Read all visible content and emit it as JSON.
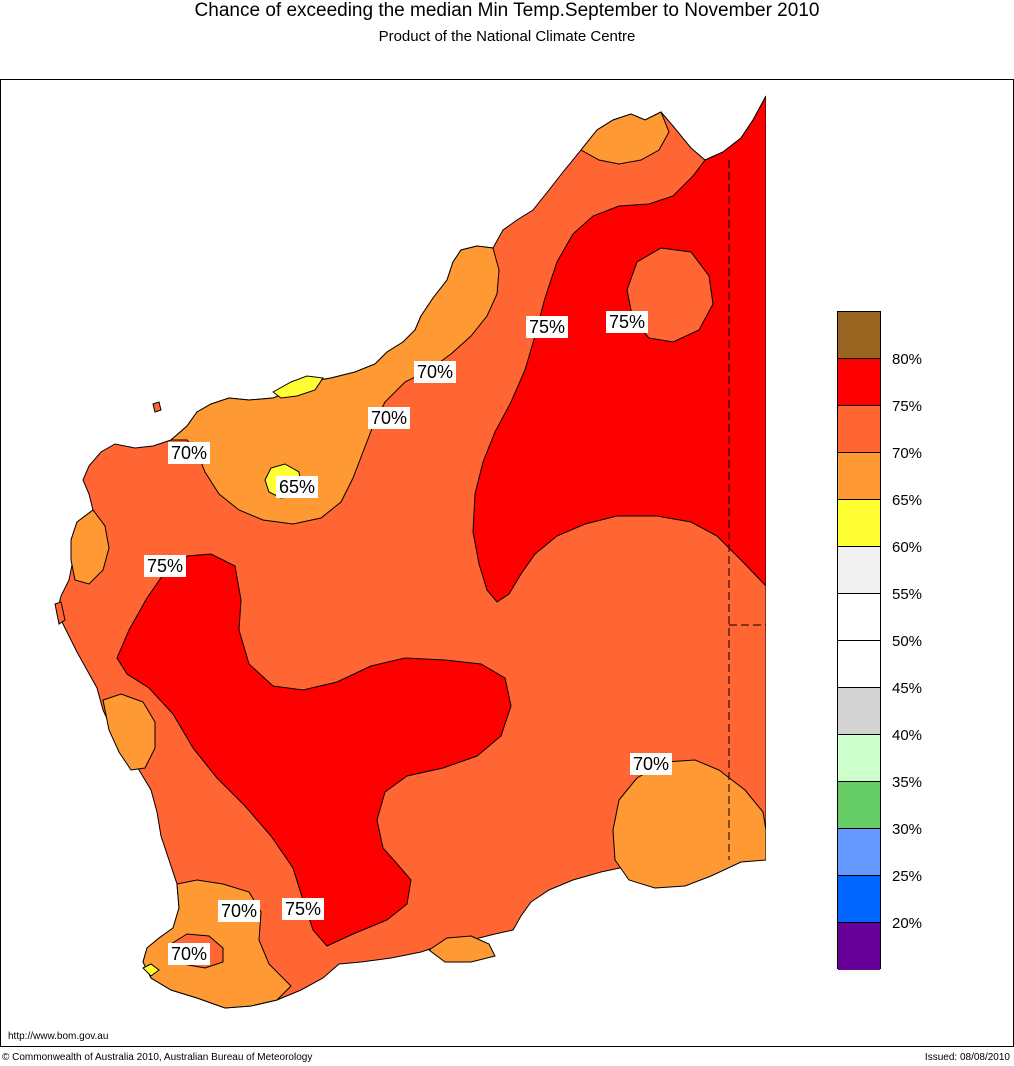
{
  "title": "Chance of exceeding the median Min Temp.September to November 2010",
  "subtitle": "Product of the National Climate Centre",
  "map": {
    "region": "Western Australia",
    "colors": {
      "band_65_70": "#ff9933",
      "band_70_75": "#ff6633",
      "band_75_80": "#ff0000",
      "band_60_65": "#ffff33",
      "background": "#ffffff"
    },
    "contour_labels": [
      "75%",
      "75%",
      "70%",
      "70%",
      "70%",
      "65%",
      "75%",
      "70%",
      "70%",
      "75%",
      "70%"
    ]
  },
  "legend": {
    "swatches": [
      {
        "color": "#996622"
      },
      {
        "color": "#ff0000"
      },
      {
        "color": "#ff6633"
      },
      {
        "color": "#ff9933"
      },
      {
        "color": "#ffff33"
      },
      {
        "color": "#f0f0f0"
      },
      {
        "color": "#ffffff"
      },
      {
        "color": "#ffffff"
      },
      {
        "color": "#d3d3d3"
      },
      {
        "color": "#ccffcc"
      },
      {
        "color": "#66cc66"
      },
      {
        "color": "#6699ff"
      },
      {
        "color": "#0066ff"
      },
      {
        "color": "#660099"
      }
    ],
    "ticks": [
      "80%",
      "75%",
      "70%",
      "65%",
      "60%",
      "55%",
      "50%",
      "45%",
      "40%",
      "35%",
      "30%",
      "25%",
      "20%"
    ]
  },
  "footer": {
    "url": "http://www.bom.gov.au",
    "copyright": "© Commonwealth of Australia 2010, Australian Bureau of Meteorology",
    "issued": "Issued: 08/08/2010"
  }
}
